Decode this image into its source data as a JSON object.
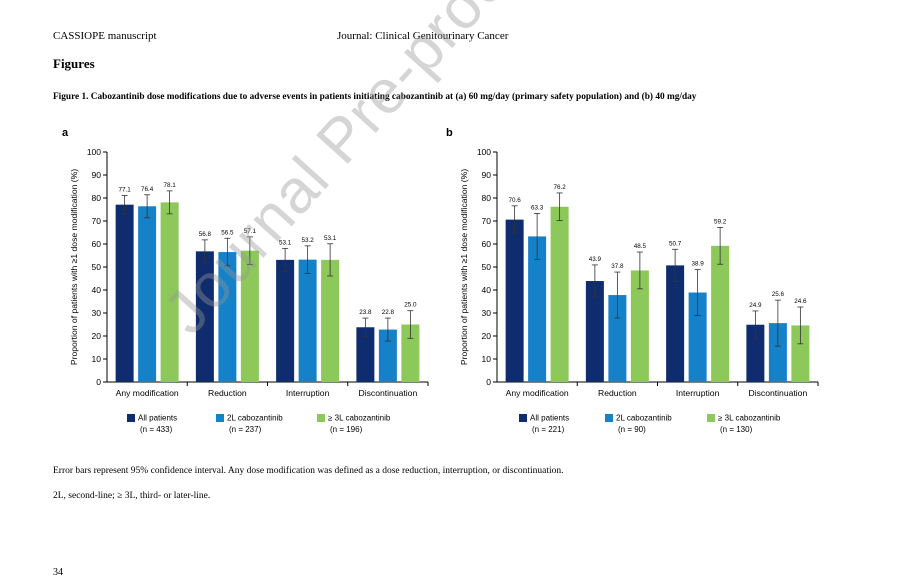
{
  "header": {
    "left": "CASSIOPE manuscript",
    "right": "Journal: Clinical Genitourinary Cancer"
  },
  "section_title": "Figures",
  "figure_caption": "Figure 1. Cabozantinib dose modifications due to adverse events in patients initiating cabozantinib at (a) 60 mg/day (primary safety population) and (b) 40 mg/day",
  "colors": {
    "all": "#0f2d6e",
    "2l": "#1581c9",
    "3l": "#8dc85a"
  },
  "chart_data": [
    {
      "panel": "a",
      "type": "bar",
      "ylabel": "Proportion of patients with ≥1 dose modification (%)",
      "ylim": [
        0,
        100
      ],
      "yticks": [
        0,
        10,
        20,
        30,
        40,
        50,
        60,
        70,
        80,
        90,
        100
      ],
      "categories": [
        "Any modification",
        "Reduction",
        "Interruption",
        "Discontinuation"
      ],
      "series": [
        {
          "name": "All patients",
          "n": "(n = 433)",
          "values": [
            77.1,
            56.8,
            53.1,
            23.8
          ],
          "labels": [
            "77.1",
            "56.8",
            "53.1",
            "23.8"
          ]
        },
        {
          "name": "2L cabozantinib",
          "n": "(n = 237)",
          "values": [
            76.4,
            56.5,
            53.2,
            22.8
          ],
          "labels": [
            "76.4",
            "56.5",
            "53.2",
            "22.8"
          ]
        },
        {
          "name": "≥ 3L cabozantinib",
          "n": "(n = 196)",
          "values": [
            78.1,
            57.1,
            53.1,
            25.0
          ],
          "labels": [
            "78.1",
            "57.1",
            "53.1",
            "25.0"
          ]
        }
      ]
    },
    {
      "panel": "b",
      "type": "bar",
      "ylabel": "Proportion of patients with ≥1 dose modification (%)",
      "ylim": [
        0,
        100
      ],
      "yticks": [
        0,
        10,
        20,
        30,
        40,
        50,
        60,
        70,
        80,
        90,
        100
      ],
      "categories": [
        "Any modification",
        "Reduction",
        "Interruption",
        "Discontinuation"
      ],
      "series": [
        {
          "name": "All patients",
          "n": "(n = 221)",
          "values": [
            70.6,
            43.9,
            50.7,
            24.9
          ],
          "labels": [
            "70.6",
            "43.9",
            "50.7",
            "24.9"
          ]
        },
        {
          "name": "2L cabozantinib",
          "n": "(n = 90)",
          "values": [
            63.3,
            37.8,
            38.9,
            25.6
          ],
          "labels": [
            "63.3",
            "37.8",
            "38.9",
            "25.6"
          ]
        },
        {
          "name": "≥ 3L cabozantinib",
          "n": "(n = 130)",
          "values": [
            76.2,
            48.5,
            59.2,
            24.6
          ],
          "labels": [
            "76.2",
            "48.5",
            "59.2",
            "24.6"
          ]
        }
      ]
    }
  ],
  "footnote_1": "Error bars represent 95% confidence interval. Any dose modification was defined as a dose reduction, interruption, or discontinuation.",
  "footnote_2": "2L, second-line; ≥ 3L, third- or later-line.",
  "page_number": "34",
  "watermark": "Journal Pre-proof"
}
